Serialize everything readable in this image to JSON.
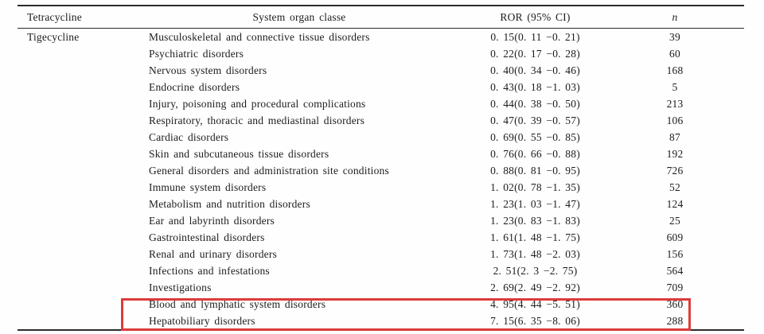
{
  "table": {
    "drug_group_label": "Tigecycline",
    "headers": {
      "drug": "Tetracycline",
      "soc": "System organ classe",
      "ror": "ROR (95% CI)",
      "n": "n"
    },
    "rows": [
      {
        "soc": "Musculoskeletal and connective tissue disorders",
        "ror": "0. 15(0. 11 −0. 21)",
        "n": "39",
        "highlighted": false
      },
      {
        "soc": "Psychiatric disorders",
        "ror": "0. 22(0. 17 −0. 28)",
        "n": "60",
        "highlighted": false
      },
      {
        "soc": "Nervous system disorders",
        "ror": "0. 40(0. 34 −0. 46)",
        "n": "168",
        "highlighted": false
      },
      {
        "soc": "Endocrine disorders",
        "ror": "0. 43(0. 18 −1. 03)",
        "n": "5",
        "highlighted": false
      },
      {
        "soc": "Injury, poisoning and procedural complications",
        "ror": "0. 44(0. 38 −0. 50)",
        "n": "213",
        "highlighted": false
      },
      {
        "soc": "Respiratory, thoracic and mediastinal disorders",
        "ror": "0. 47(0. 39 −0. 57)",
        "n": "106",
        "highlighted": false
      },
      {
        "soc": "Cardiac disorders",
        "ror": "0. 69(0. 55 −0. 85)",
        "n": "87",
        "highlighted": false
      },
      {
        "soc": "Skin and subcutaneous tissue disorders",
        "ror": "0. 76(0. 66 −0. 88)",
        "n": "192",
        "highlighted": false
      },
      {
        "soc": "General disorders and administration site conditions",
        "ror": "0. 88(0. 81 −0. 95)",
        "n": "726",
        "highlighted": false
      },
      {
        "soc": "Immune system disorders",
        "ror": "1. 02(0. 78 −1. 35)",
        "n": "52",
        "highlighted": false
      },
      {
        "soc": "Metabolism and nutrition disorders",
        "ror": "1. 23(1. 03 −1. 47)",
        "n": "124",
        "highlighted": false
      },
      {
        "soc": "Ear and labyrinth disorders",
        "ror": "1. 23(0. 83 −1. 83)",
        "n": "25",
        "highlighted": false
      },
      {
        "soc": "Gastrointestinal disorders",
        "ror": "1. 61(1. 48 −1. 75)",
        "n": "609",
        "highlighted": false
      },
      {
        "soc": "Renal and urinary disorders",
        "ror": "1. 73(1. 48 −2. 03)",
        "n": "156",
        "highlighted": false
      },
      {
        "soc": "Infections and infestations",
        "ror": "2. 51(2. 3 −2. 75)",
        "n": "564",
        "highlighted": false
      },
      {
        "soc": "Investigations",
        "ror": "2. 69(2. 49 −2. 92)",
        "n": "709",
        "highlighted": false
      },
      {
        "soc": "Blood and lymphatic system disorders",
        "ror": "4. 95(4. 44 −5. 51)",
        "n": "360",
        "highlighted": true
      },
      {
        "soc": "Hepatobiliary disorders",
        "ror": "7. 15(6. 35 −8. 06)",
        "n": "288",
        "highlighted": true
      }
    ],
    "highlight_color": "#dd3b3b"
  }
}
